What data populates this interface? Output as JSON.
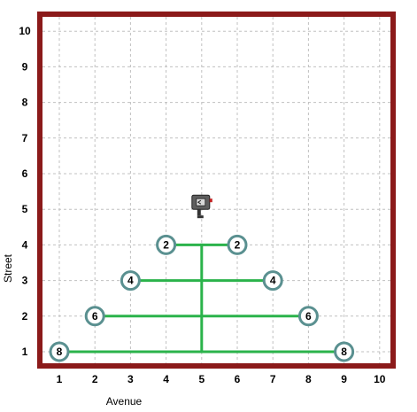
{
  "axes": {
    "x_title": "Avenue",
    "y_title": "Street",
    "x_ticks": [
      "1",
      "2",
      "3",
      "4",
      "5",
      "6",
      "7",
      "8",
      "9",
      "10"
    ],
    "y_ticks": [
      "1",
      "2",
      "3",
      "4",
      "5",
      "6",
      "7",
      "8",
      "9",
      "10"
    ]
  },
  "colors": {
    "wall": "#8b1a1a",
    "grid": "#c0c0c0",
    "path": "#2bb34b",
    "beeper_ring": "#5a9090"
  },
  "robot": {
    "avenue": 5,
    "street": 5,
    "facing": "west",
    "icon": "robot-icon"
  },
  "path_segments": [
    {
      "from": [
        5,
        4
      ],
      "to": [
        5,
        1
      ]
    },
    {
      "from": [
        1,
        1
      ],
      "to": [
        9,
        1
      ]
    },
    {
      "from": [
        2,
        2
      ],
      "to": [
        8,
        2
      ]
    },
    {
      "from": [
        3,
        3
      ],
      "to": [
        7,
        3
      ]
    },
    {
      "from": [
        4,
        4
      ],
      "to": [
        6,
        4
      ]
    }
  ],
  "beepers": [
    {
      "avenue": 4,
      "street": 4,
      "count": "2"
    },
    {
      "avenue": 6,
      "street": 4,
      "count": "2"
    },
    {
      "avenue": 3,
      "street": 3,
      "count": "4"
    },
    {
      "avenue": 7,
      "street": 3,
      "count": "4"
    },
    {
      "avenue": 2,
      "street": 2,
      "count": "6"
    },
    {
      "avenue": 8,
      "street": 2,
      "count": "6"
    },
    {
      "avenue": 1,
      "street": 1,
      "count": "8"
    },
    {
      "avenue": 9,
      "street": 1,
      "count": "8"
    }
  ]
}
